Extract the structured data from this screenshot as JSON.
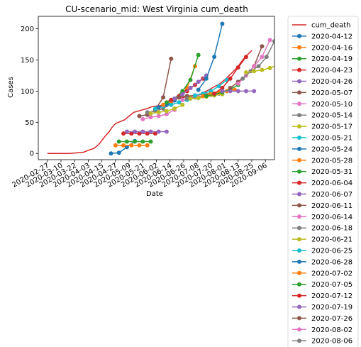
{
  "chart_data": {
    "type": "line",
    "title": "CU-scenario_mid: West Virginia cum_death",
    "xlabel": "Date",
    "ylabel": "Cases",
    "xlim": [
      "2020-02-19",
      "2020-09-14"
    ],
    "ylim": [
      -10,
      220
    ],
    "x_ticks": [
      "2020-02-27",
      "2020-03-10",
      "2020-03-22",
      "2020-04-03",
      "2020-04-15",
      "2020-04-27",
      "2020-05-09",
      "2020-05-21",
      "2020-06-02",
      "2020-06-14",
      "2020-06-26",
      "2020-07-08",
      "2020-07-20",
      "2020-08-01",
      "2020-08-13",
      "2020-08-25",
      "2020-09-06"
    ],
    "y_ticks": [
      0,
      50,
      100,
      150,
      200
    ],
    "legend_position": "outside-right",
    "observed": {
      "name": "cum_death",
      "color": "#d62728",
      "points": [
        [
          "2020-02-27",
          0
        ],
        [
          "2020-03-18",
          0
        ],
        [
          "2020-03-25",
          1
        ],
        [
          "2020-03-30",
          2
        ],
        [
          "2020-04-03",
          5
        ],
        [
          "2020-04-08",
          8
        ],
        [
          "2020-04-12",
          14
        ],
        [
          "2020-04-15",
          21
        ],
        [
          "2020-04-18",
          28
        ],
        [
          "2020-04-21",
          34
        ],
        [
          "2020-04-24",
          42
        ],
        [
          "2020-04-27",
          48
        ],
        [
          "2020-05-01",
          51
        ],
        [
          "2020-05-05",
          54
        ],
        [
          "2020-05-09",
          60
        ],
        [
          "2020-05-13",
          66
        ],
        [
          "2020-05-17",
          68
        ],
        [
          "2020-05-21",
          70
        ],
        [
          "2020-05-25",
          72
        ],
        [
          "2020-05-29",
          75
        ],
        [
          "2020-06-02",
          76
        ],
        [
          "2020-06-06",
          77
        ],
        [
          "2020-06-10",
          80
        ],
        [
          "2020-06-14",
          86
        ],
        [
          "2020-06-18",
          88
        ],
        [
          "2020-06-22",
          89
        ],
        [
          "2020-06-26",
          90
        ],
        [
          "2020-06-30",
          91
        ],
        [
          "2020-07-04",
          92
        ],
        [
          "2020-07-08",
          94
        ],
        [
          "2020-07-12",
          96
        ],
        [
          "2020-07-16",
          100
        ],
        [
          "2020-07-20",
          104
        ],
        [
          "2020-07-24",
          108
        ],
        [
          "2020-07-28",
          112
        ],
        [
          "2020-08-01",
          118
        ],
        [
          "2020-08-05",
          125
        ],
        [
          "2020-08-09",
          132
        ],
        [
          "2020-08-13",
          140
        ],
        [
          "2020-08-17",
          150
        ],
        [
          "2020-08-21",
          158
        ],
        [
          "2020-08-25",
          165
        ]
      ]
    },
    "series": [
      {
        "name": "2020-04-12",
        "color": "#1f77b4",
        "points": [
          [
            "2020-04-23",
            0
          ],
          [
            "2020-04-30",
            1
          ],
          [
            "2020-05-07",
            10
          ],
          [
            "2020-05-14",
            20
          ]
        ]
      },
      {
        "name": "2020-04-16",
        "color": "#ff7f0e",
        "points": [
          [
            "2020-04-27",
            13
          ],
          [
            "2020-05-04",
            13
          ],
          [
            "2020-05-11",
            13
          ],
          [
            "2020-05-18",
            13
          ],
          [
            "2020-05-25",
            13
          ]
        ]
      },
      {
        "name": "2020-04-19",
        "color": "#2ca02c",
        "points": [
          [
            "2020-04-30",
            19
          ],
          [
            "2020-05-07",
            19
          ],
          [
            "2020-05-14",
            19
          ],
          [
            "2020-05-21",
            19
          ],
          [
            "2020-05-28",
            19
          ]
        ]
      },
      {
        "name": "2020-04-23",
        "color": "#d62728",
        "points": [
          [
            "2020-05-04",
            32
          ],
          [
            "2020-05-11",
            32
          ],
          [
            "2020-05-18",
            32
          ],
          [
            "2020-05-25",
            32
          ],
          [
            "2020-06-01",
            32
          ]
        ]
      },
      {
        "name": "2020-04-26",
        "color": "#9467bd",
        "points": [
          [
            "2020-05-07",
            35
          ],
          [
            "2020-05-14",
            35
          ],
          [
            "2020-05-21",
            35
          ],
          [
            "2020-05-28",
            35
          ],
          [
            "2020-06-04",
            35
          ],
          [
            "2020-06-11",
            35
          ]
        ]
      },
      {
        "name": "2020-05-07",
        "color": "#8c564b",
        "points": [
          [
            "2020-05-18",
            60
          ],
          [
            "2020-05-25",
            62
          ],
          [
            "2020-06-01",
            70
          ],
          [
            "2020-06-08",
            90
          ],
          [
            "2020-06-15",
            152
          ]
        ]
      },
      {
        "name": "2020-05-10",
        "color": "#e377c2",
        "points": [
          [
            "2020-05-21",
            55
          ],
          [
            "2020-05-28",
            58
          ],
          [
            "2020-06-04",
            60
          ],
          [
            "2020-06-11",
            63
          ],
          [
            "2020-06-18",
            70
          ]
        ]
      },
      {
        "name": "2020-05-14",
        "color": "#7f7f7f",
        "points": [
          [
            "2020-05-25",
            66
          ],
          [
            "2020-06-01",
            68
          ],
          [
            "2020-06-08",
            72
          ],
          [
            "2020-06-15",
            80
          ],
          [
            "2020-06-22",
            90
          ]
        ]
      },
      {
        "name": "2020-05-17",
        "color": "#bcbd22",
        "points": [
          [
            "2020-05-28",
            64
          ],
          [
            "2020-06-04",
            66
          ],
          [
            "2020-06-11",
            68
          ],
          [
            "2020-06-18",
            72
          ],
          [
            "2020-06-25",
            78
          ]
        ]
      },
      {
        "name": "2020-05-21",
        "color": "#17becf",
        "points": [
          [
            "2020-06-01",
            72
          ],
          [
            "2020-06-08",
            76
          ],
          [
            "2020-06-15",
            78
          ],
          [
            "2020-06-22",
            82
          ],
          [
            "2020-06-29",
            86
          ]
        ]
      },
      {
        "name": "2020-05-24",
        "color": "#1f77b4",
        "points": [
          [
            "2020-06-04",
            74
          ],
          [
            "2020-06-11",
            78
          ],
          [
            "2020-06-18",
            85
          ],
          [
            "2020-06-25",
            95
          ],
          [
            "2020-07-02",
            105
          ]
        ]
      },
      {
        "name": "2020-05-28",
        "color": "#ff7f0e",
        "points": [
          [
            "2020-06-08",
            78
          ],
          [
            "2020-06-15",
            84
          ],
          [
            "2020-06-22",
            90
          ],
          [
            "2020-06-29",
            105
          ],
          [
            "2020-07-06",
            140
          ]
        ]
      },
      {
        "name": "2020-05-31",
        "color": "#2ca02c",
        "points": [
          [
            "2020-06-11",
            82
          ],
          [
            "2020-06-18",
            88
          ],
          [
            "2020-06-25",
            100
          ],
          [
            "2020-07-02",
            118
          ],
          [
            "2020-07-09",
            158
          ]
        ]
      },
      {
        "name": "2020-06-04",
        "color": "#d62728",
        "points": [
          [
            "2020-06-15",
            86
          ],
          [
            "2020-06-22",
            92
          ],
          [
            "2020-06-29",
            100
          ],
          [
            "2020-07-06",
            110
          ],
          [
            "2020-07-13",
            120
          ]
        ]
      },
      {
        "name": "2020-06-07",
        "color": "#9467bd",
        "points": [
          [
            "2020-06-18",
            88
          ],
          [
            "2020-06-25",
            95
          ],
          [
            "2020-07-02",
            105
          ],
          [
            "2020-07-09",
            115
          ],
          [
            "2020-07-16",
            125
          ]
        ]
      },
      {
        "name": "2020-06-11",
        "color": "#8c564b",
        "points": [
          [
            "2020-06-22",
            90
          ],
          [
            "2020-06-29",
            92
          ],
          [
            "2020-07-06",
            93
          ],
          [
            "2020-07-13",
            95
          ],
          [
            "2020-07-20",
            96
          ]
        ]
      },
      {
        "name": "2020-06-14",
        "color": "#e377c2",
        "points": [
          [
            "2020-06-25",
            86
          ],
          [
            "2020-07-02",
            88
          ],
          [
            "2020-07-09",
            90
          ],
          [
            "2020-07-16",
            92
          ],
          [
            "2020-07-23",
            94
          ]
        ]
      },
      {
        "name": "2020-06-18",
        "color": "#7f7f7f",
        "points": [
          [
            "2020-06-29",
            88
          ],
          [
            "2020-07-06",
            90
          ],
          [
            "2020-07-13",
            92
          ],
          [
            "2020-07-20",
            94
          ],
          [
            "2020-07-27",
            96
          ]
        ]
      },
      {
        "name": "2020-06-21",
        "color": "#bcbd22",
        "points": [
          [
            "2020-07-02",
            88
          ],
          [
            "2020-07-09",
            89
          ],
          [
            "2020-07-16",
            91
          ],
          [
            "2020-07-23",
            93
          ],
          [
            "2020-07-30",
            95
          ]
        ]
      },
      {
        "name": "2020-06-25",
        "color": "#17becf",
        "points": [
          [
            "2020-07-06",
            93
          ],
          [
            "2020-07-13",
            96
          ],
          [
            "2020-07-20",
            100
          ],
          [
            "2020-07-27",
            108
          ],
          [
            "2020-08-03",
            118
          ]
        ]
      },
      {
        "name": "2020-06-28",
        "color": "#1f77b4",
        "points": [
          [
            "2020-07-09",
            102
          ],
          [
            "2020-07-16",
            120
          ],
          [
            "2020-07-23",
            155
          ],
          [
            "2020-07-30",
            208
          ]
        ]
      },
      {
        "name": "2020-07-02",
        "color": "#ff7f0e",
        "points": [
          [
            "2020-07-13",
            92
          ],
          [
            "2020-07-20",
            95
          ],
          [
            "2020-07-27",
            98
          ],
          [
            "2020-08-03",
            100
          ],
          [
            "2020-08-10",
            102
          ]
        ]
      },
      {
        "name": "2020-07-05",
        "color": "#2ca02c",
        "points": [
          [
            "2020-07-16",
            92
          ],
          [
            "2020-07-23",
            95
          ],
          [
            "2020-07-30",
            98
          ],
          [
            "2020-08-06",
            103
          ],
          [
            "2020-08-13",
            110
          ]
        ]
      },
      {
        "name": "2020-07-12",
        "color": "#d62728",
        "points": [
          [
            "2020-07-23",
            96
          ],
          [
            "2020-07-30",
            105
          ],
          [
            "2020-08-06",
            120
          ],
          [
            "2020-08-13",
            138
          ],
          [
            "2020-08-20",
            155
          ]
        ]
      },
      {
        "name": "2020-07-19",
        "color": "#9467bd",
        "points": [
          [
            "2020-07-30",
            100
          ],
          [
            "2020-08-06",
            100
          ],
          [
            "2020-08-13",
            100
          ],
          [
            "2020-08-20",
            100
          ],
          [
            "2020-08-27",
            100
          ]
        ]
      },
      {
        "name": "2020-07-26",
        "color": "#8c564b",
        "points": [
          [
            "2020-08-06",
            105
          ],
          [
            "2020-08-13",
            115
          ],
          [
            "2020-08-20",
            125
          ],
          [
            "2020-08-27",
            140
          ],
          [
            "2020-09-03",
            172
          ]
        ]
      },
      {
        "name": "2020-08-02",
        "color": "#e377c2",
        "points": [
          [
            "2020-08-13",
            112
          ],
          [
            "2020-08-20",
            125
          ],
          [
            "2020-08-27",
            140
          ],
          [
            "2020-09-03",
            155
          ],
          [
            "2020-09-10",
            182
          ]
        ]
      },
      {
        "name": "2020-08-06",
        "color": "#7f7f7f",
        "points": [
          [
            "2020-08-17",
            120
          ],
          [
            "2020-08-24",
            132
          ],
          [
            "2020-08-31",
            140
          ],
          [
            "2020-09-07",
            155
          ],
          [
            "2020-09-14",
            180
          ]
        ]
      },
      {
        "name": "2020-08-09",
        "color": "#bcbd22",
        "points": [
          [
            "2020-08-20",
            130
          ],
          [
            "2020-08-27",
            132
          ],
          [
            "2020-09-03",
            134
          ],
          [
            "2020-09-10",
            137
          ],
          [
            "2020-09-17",
            142
          ]
        ]
      }
    ]
  }
}
